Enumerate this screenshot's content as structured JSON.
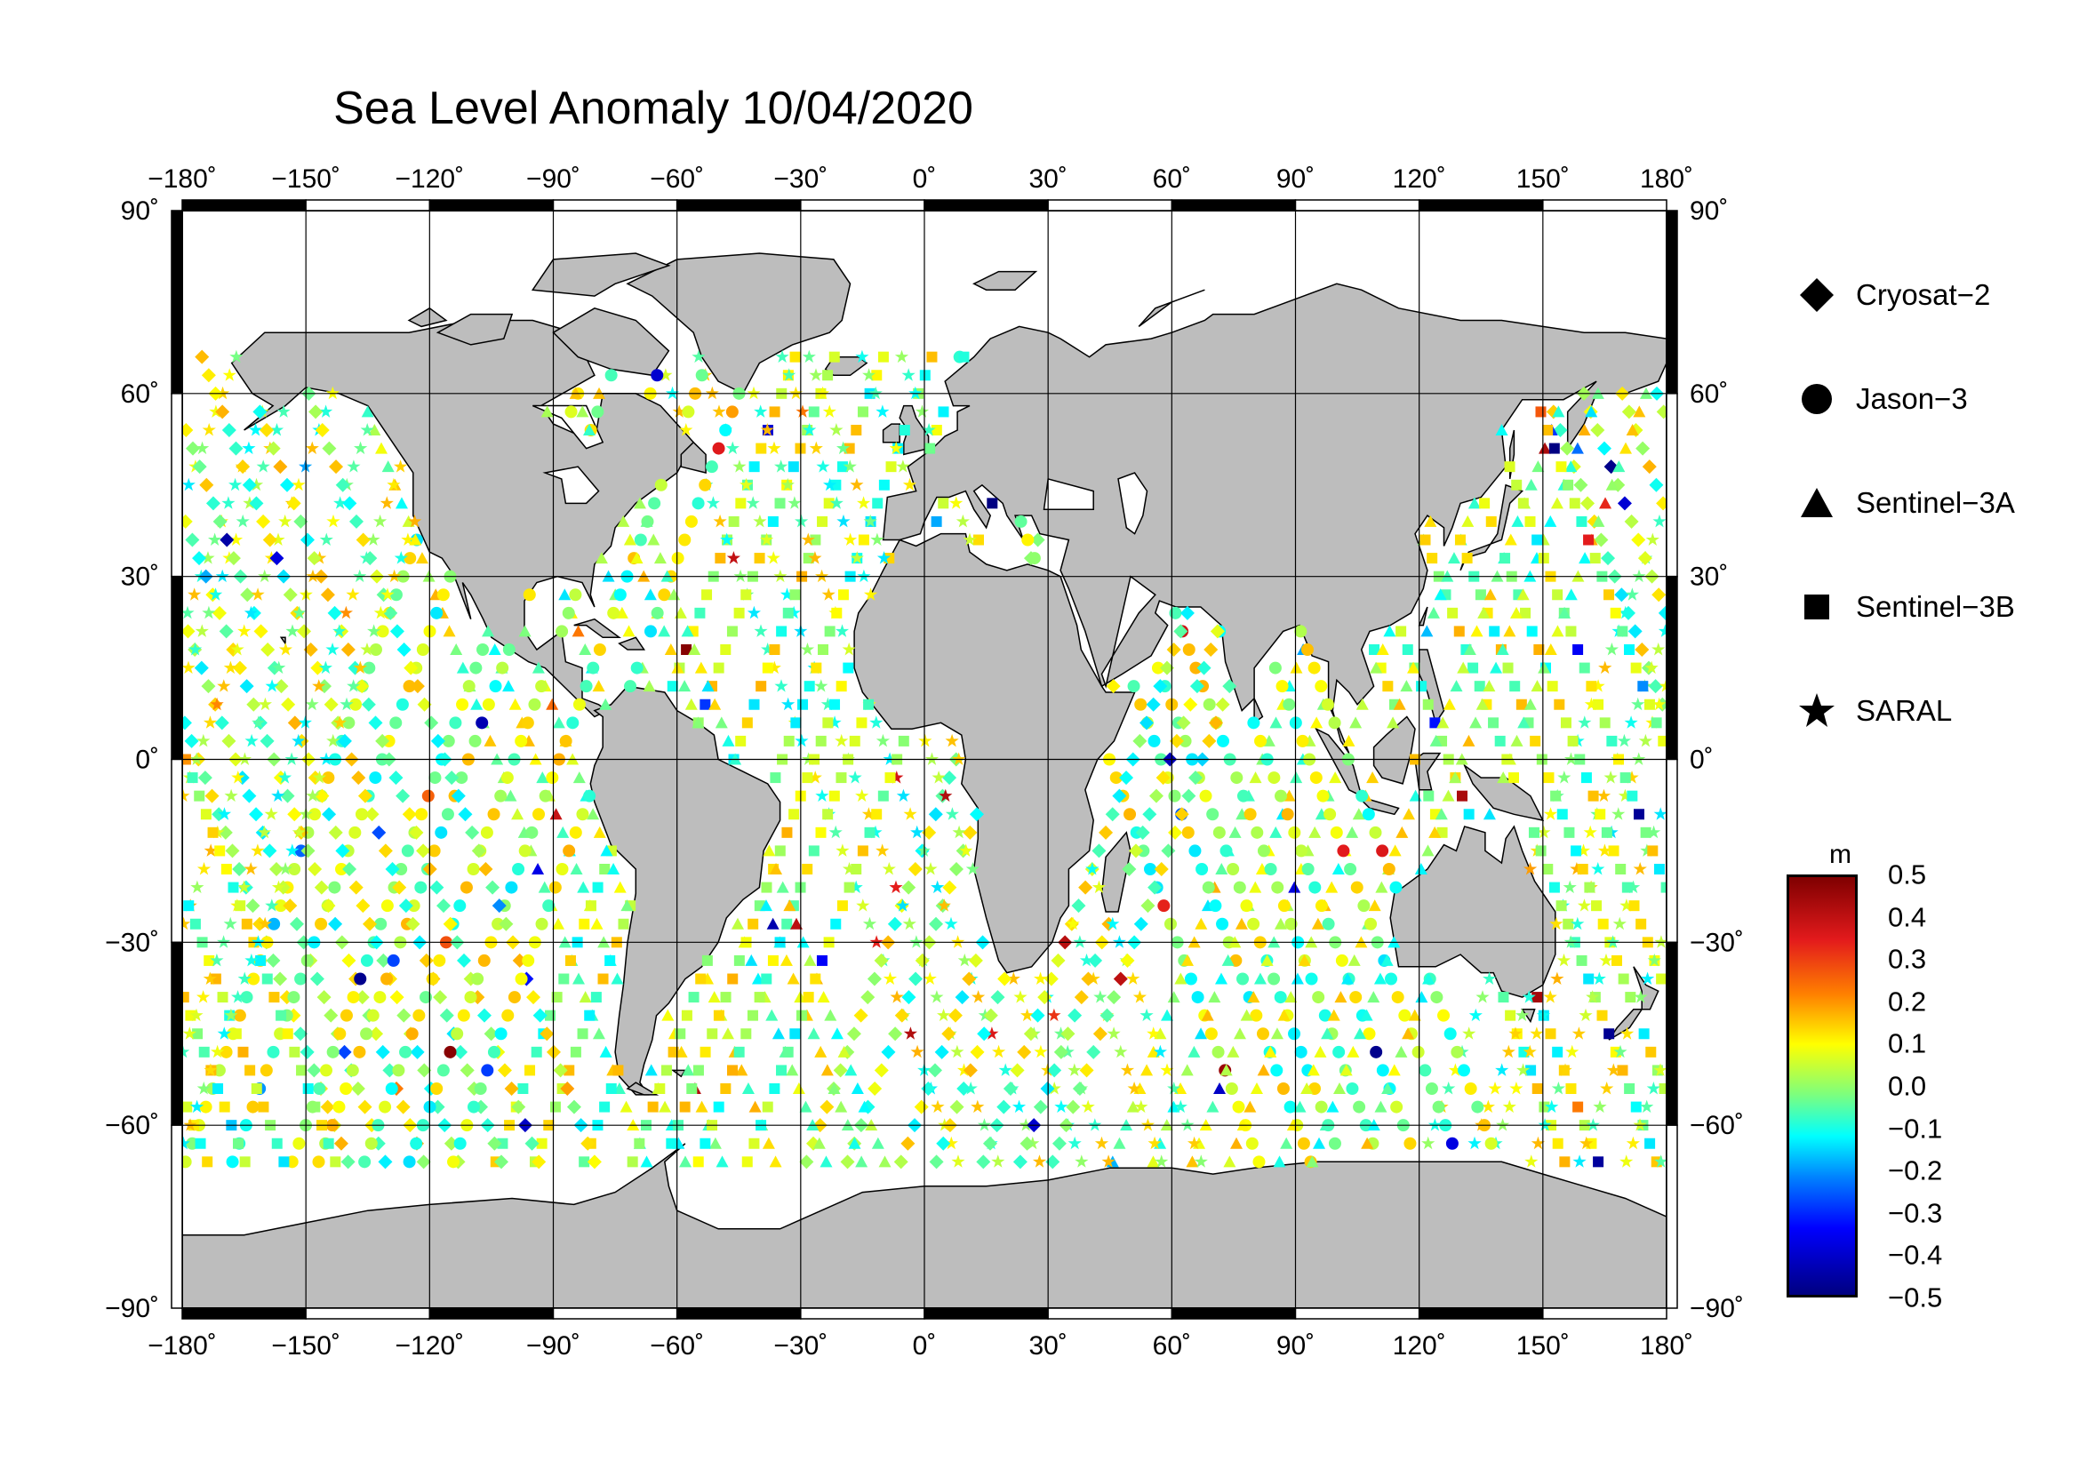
{
  "title": "Sea Level Anomaly 10/04/2020",
  "map": {
    "lon_ticks": [
      "−180˚",
      "−150˚",
      "−120˚",
      "−90˚",
      "−60˚",
      "−30˚",
      "0˚",
      "30˚",
      "60˚",
      "90˚",
      "120˚",
      "150˚",
      "180˚"
    ],
    "lat_ticks": [
      "90˚",
      "60˚",
      "30˚",
      "0˚",
      "−30˚",
      "−60˚",
      "−90˚"
    ],
    "lon_range": [
      -180,
      180
    ],
    "lat_range": [
      -90,
      90
    ],
    "grid": true,
    "land_color": "#bdbdbd",
    "ocean_color": "#ffffff"
  },
  "legend": {
    "items": [
      {
        "label": "Cryosat−2",
        "icon": "diamond-icon"
      },
      {
        "label": "Jason−3",
        "icon": "circle-icon"
      },
      {
        "label": "Sentinel−3A",
        "icon": "triangle-icon"
      },
      {
        "label": "Sentinel−3B",
        "icon": "square-icon"
      },
      {
        "label": "SARAL",
        "icon": "star-icon"
      }
    ]
  },
  "colorbar": {
    "unit": "m",
    "ticks": [
      "0.5",
      "0.4",
      "0.3",
      "0.2",
      "0.1",
      "0.0",
      "−0.1",
      "−0.2",
      "−0.3",
      "−0.4",
      "−0.5"
    ],
    "range": [
      -0.5,
      0.5
    ]
  }
}
